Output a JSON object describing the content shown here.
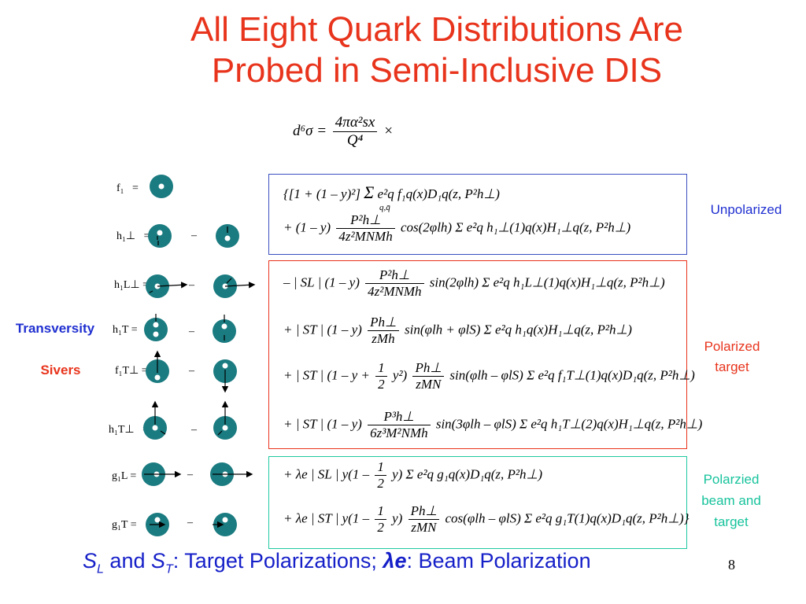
{
  "title": {
    "line1": "All Eight Quark Distributions Are",
    "line2": "Probed in Semi-Inclusive DIS"
  },
  "header_formula": {
    "lhs": "d⁶σ =",
    "num": "4πα²sx",
    "den": "Q⁴",
    "times": "×"
  },
  "box_labels": {
    "unpolarized": "Unpolarized",
    "polarized_target": "Polarized target",
    "polarized_beam_target": "Polarzied beam and target"
  },
  "side_labels": {
    "transversity": "Transversity",
    "sivers": "Sivers"
  },
  "distributions": [
    {
      "name": "f₁",
      "eq": "=",
      "minus": ""
    },
    {
      "name": "h₁⊥",
      "eq": "=",
      "minus": "–"
    },
    {
      "name": "h₁L⊥",
      "eq": "=",
      "minus": "–"
    },
    {
      "name": "h₁T",
      "eq": "=",
      "minus": "–"
    },
    {
      "name": "f₁T⊥",
      "eq": "=",
      "minus": "–"
    },
    {
      "name": "h₁T⊥",
      "eq": "=",
      "minus": "–"
    },
    {
      "name": "g₁L",
      "eq": "=",
      "minus": "–"
    },
    {
      "name": "g₁T",
      "eq": "=",
      "minus": "–"
    }
  ],
  "equations": {
    "e1_pre": "{[1 + (1 – y)²]",
    "e1_post": "e²q f₁q(x)D₁q(z, P²h⊥)",
    "e2_pre": "+ (1 – y)",
    "e2_num": "P²h⊥",
    "e2_den": "4z²MNMh",
    "e2_post": "cos(2φlh) Σ e²q h₁⊥(1)q(x)H₁⊥q(z, P²h⊥)",
    "e3_pre": "– | SL | (1 – y)",
    "e3_num": "P²h⊥",
    "e3_den": "4z²MNMh",
    "e3_post": "sin(2φlh) Σ e²q h₁L⊥(1)q(x)H₁⊥q(z, P²h⊥)",
    "e4_pre": "+ | ST | (1 – y)",
    "e4_num": "Ph⊥",
    "e4_den": "zMh",
    "e4_post": "sin(φlh + φlS) Σ e²q h₁q(x)H₁⊥q(z, P²h⊥)",
    "e5_pre": "+ | ST | (1 – y +",
    "e5_half": "1",
    "e5_half_den": "2",
    "e5_mid": "y²)",
    "e5_num": "Ph⊥",
    "e5_den": "zMN",
    "e5_post": "sin(φlh – φlS) Σ e²q f₁T⊥(1)q(x)D₁q(z, P²h⊥)",
    "e6_pre": "+ | ST | (1 – y)",
    "e6_num": "P³h⊥",
    "e6_den": "6z³M²NMh",
    "e6_post": "sin(3φlh – φlS) Σ e²q h₁T⊥(2)q(x)H₁⊥q(z, P²h⊥)",
    "e7_pre": "+ λe | SL | y(1 –",
    "e7_half": "1",
    "e7_half_den": "2",
    "e7_post": "y) Σ e²q g₁q(x)D₁q(z, P²h⊥)",
    "e8_pre": "+ λe | ST | y(1 –",
    "e8_half": "1",
    "e8_half_den": "2",
    "e8_mid": "y)",
    "e8_num": "Ph⊥",
    "e8_den": "zMN",
    "e8_post": "cos(φlh – φlS) Σ e²q g₁T(1)q(x)D₁q(z, P²h⊥)}",
    "sum_sub": "q,q̄"
  },
  "footer": {
    "sl": "S",
    "sl_sub": "L",
    "and": " and ",
    "st": "S",
    "st_sub": "T",
    "mid": ": Target Polarizations; ",
    "lambda": "λe",
    "end": ": Beam Polarization"
  },
  "page_number": "8",
  "colors": {
    "title": "#e8341c",
    "circle_fill": "#1a7b80",
    "box_unpolarized": "#3a4fc0",
    "box_polarized": "#e8341c",
    "box_beam": "#1fc9a0",
    "label_blue": "#2030d0",
    "label_red": "#e8341c",
    "label_teal": "#17c39c",
    "footer": "#1620c8"
  }
}
